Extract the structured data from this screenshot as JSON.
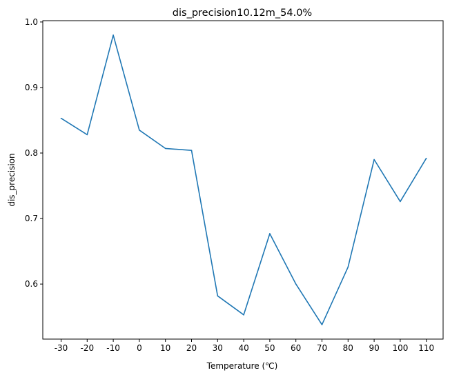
{
  "chart_data": {
    "type": "line",
    "title": "dis_precision10.12m_54.0%",
    "xlabel": "Temperature (℃)",
    "ylabel": "dis_precision",
    "x": [
      "-30",
      "-20",
      "-10",
      "0",
      "10",
      "20",
      "30",
      "40",
      "50",
      "60",
      "70",
      "80",
      "90",
      "100",
      "110"
    ],
    "series": [
      {
        "values": [
          0.853,
          0.828,
          0.98,
          0.835,
          0.807,
          0.804,
          0.582,
          0.553,
          0.677,
          0.6,
          0.538,
          0.626,
          0.79,
          0.726,
          0.792
        ],
        "color": "#1f77b4"
      }
    ],
    "yticks": [
      "0.6",
      "0.7",
      "0.8",
      "0.9",
      "1.0"
    ],
    "ylim": [
      0.516,
      1.002
    ],
    "grid": false,
    "legend": "none"
  }
}
